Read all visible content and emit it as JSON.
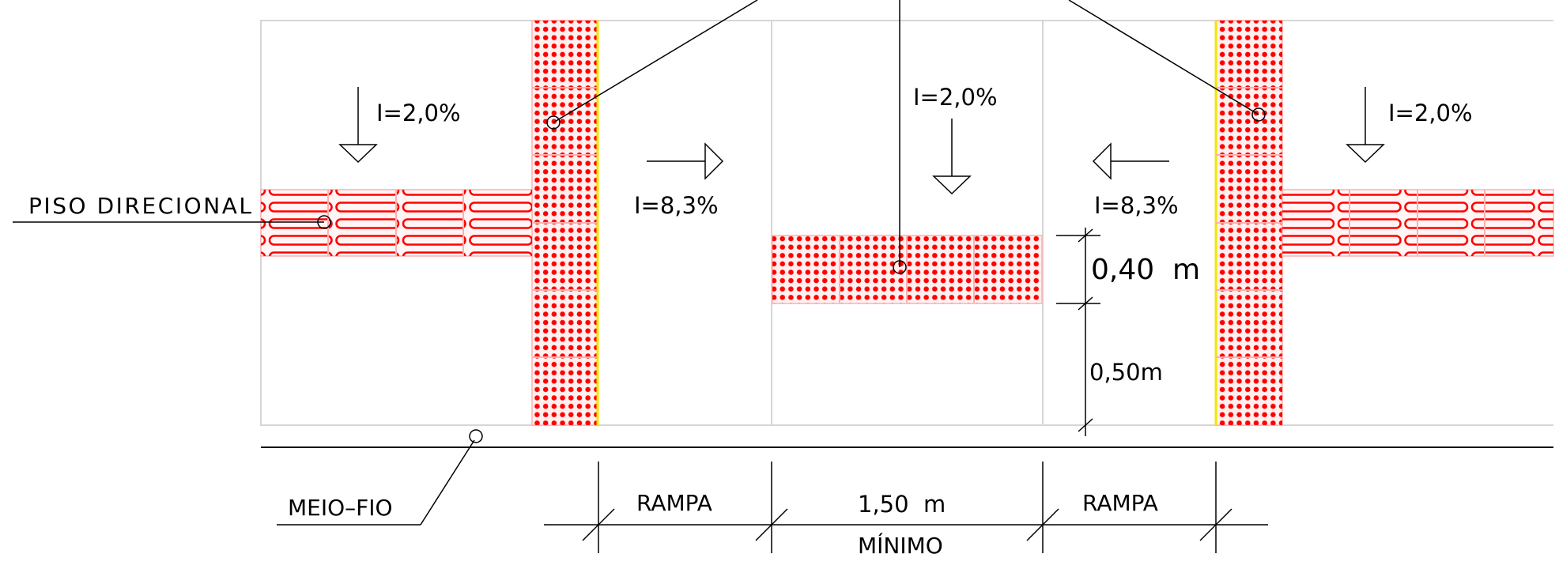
{
  "labels": {
    "piso_direcional": "PISO DIRECIONAL",
    "meio_fio": "MEIO–FIO",
    "slope_walk_left": "I=2,0%",
    "slope_walk_center": "I=2,0%",
    "slope_walk_right": "I=2,0%",
    "slope_ramp_left": "I=8,3%",
    "slope_ramp_right": "I=8,3%",
    "dim_040": "0,40  m",
    "dim_050": "0,50m",
    "rampa_left": "RAMPA",
    "rampa_right": "RAMPA",
    "width_center": "1,50  m",
    "minimo": "MÍNIMO"
  },
  "colors": {
    "tactile_red": "#ff0000",
    "tactile_border": "#ffb0b0",
    "edge_yellow": "#f2e600",
    "outline_gray": "#d6d6d6",
    "line_black": "#000000"
  }
}
